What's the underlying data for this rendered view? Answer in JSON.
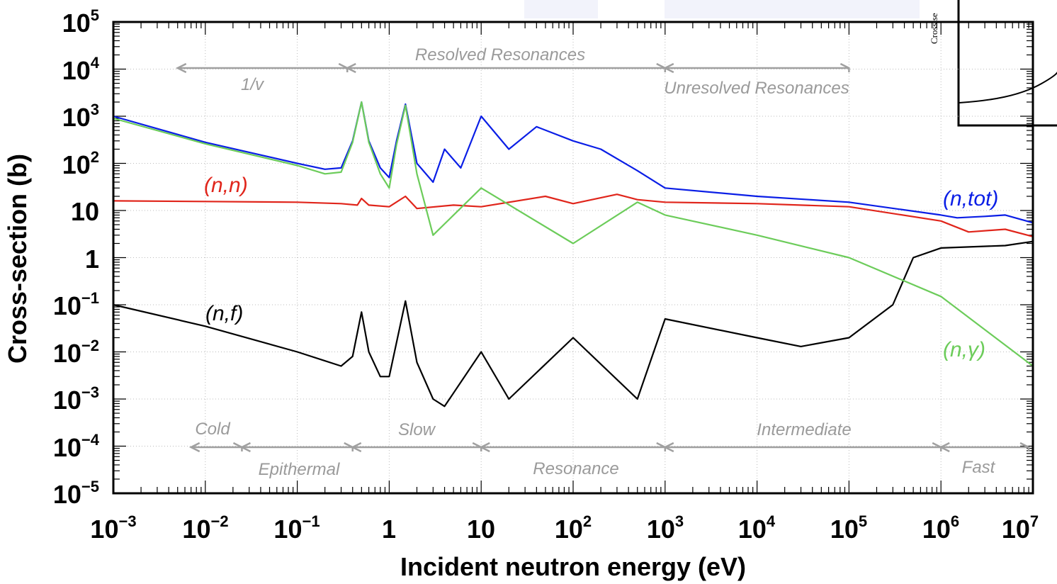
{
  "chart_data": {
    "type": "line",
    "xlabel": "Incident neutron energy (eV)",
    "ylabel": "Cross-section (b)",
    "x_scale": "log",
    "y_scale": "log",
    "xlim": [
      0.001,
      10000000
    ],
    "ylim": [
      1e-05,
      100000
    ],
    "grid": true,
    "x_ticks": [
      {
        "base": "10",
        "exp": "−3"
      },
      {
        "base": "10",
        "exp": "−2"
      },
      {
        "base": "10",
        "exp": "−1"
      },
      {
        "base": "1",
        "exp": ""
      },
      {
        "base": "10",
        "exp": ""
      },
      {
        "base": "10",
        "exp": "2"
      },
      {
        "base": "10",
        "exp": "3"
      },
      {
        "base": "10",
        "exp": "4"
      },
      {
        "base": "10",
        "exp": "5"
      },
      {
        "base": "10",
        "exp": "6"
      },
      {
        "base": "10",
        "exp": "7"
      }
    ],
    "y_ticks": [
      {
        "base": "10",
        "exp": "5"
      },
      {
        "base": "10",
        "exp": "4"
      },
      {
        "base": "10",
        "exp": "3"
      },
      {
        "base": "10",
        "exp": "2"
      },
      {
        "base": "10",
        "exp": ""
      },
      {
        "base": "1",
        "exp": ""
      },
      {
        "base": "10",
        "exp": "−1"
      },
      {
        "base": "10",
        "exp": "−2"
      },
      {
        "base": "10",
        "exp": "−3"
      },
      {
        "base": "10",
        "exp": "−4"
      },
      {
        "base": "10",
        "exp": "−5"
      }
    ],
    "series": [
      {
        "name": "(n,tot)",
        "color": "#0a1ee6",
        "x": [
          0.001,
          0.01,
          0.1,
          0.2,
          0.3,
          0.4,
          0.5,
          0.6,
          0.8,
          1.0,
          1.2,
          1.5,
          2.0,
          3.0,
          4.0,
          6.0,
          10,
          20,
          40,
          100,
          200,
          500,
          1000,
          10000,
          100000,
          1000000,
          1500000,
          3000000,
          5000000,
          10000000
        ],
        "y": [
          1000,
          280,
          100,
          75,
          80,
          300,
          2000,
          300,
          80,
          50,
          300,
          1800,
          100,
          40,
          200,
          80,
          1000,
          200,
          600,
          300,
          200,
          70,
          30,
          20,
          15,
          8,
          7,
          7.5,
          8,
          5.5
        ]
      },
      {
        "name": "(n,n)",
        "color": "#e0251b",
        "x": [
          0.001,
          0.01,
          0.1,
          0.3,
          0.45,
          0.5,
          0.6,
          1.0,
          1.5,
          2.0,
          5,
          10,
          50,
          100,
          300,
          500,
          1000,
          10000,
          100000,
          1000000,
          2000000,
          5000000,
          10000000
        ],
        "y": [
          16,
          15.5,
          15,
          14,
          13,
          18,
          13,
          12,
          20,
          11,
          13,
          12,
          20,
          14,
          22,
          17,
          15,
          14,
          12,
          6,
          3.5,
          4,
          2.8
        ]
      },
      {
        "name": "(n,γ)",
        "color": "#6ccc5a",
        "x": [
          0.001,
          0.01,
          0.1,
          0.2,
          0.3,
          0.4,
          0.5,
          0.6,
          0.8,
          1.0,
          1.2,
          1.5,
          2.0,
          3.0,
          10,
          100,
          500,
          1000,
          10000,
          100000,
          1000000,
          10000000
        ],
        "y": [
          900,
          260,
          90,
          60,
          65,
          280,
          2000,
          280,
          60,
          30,
          250,
          1700,
          60,
          3,
          30,
          2,
          15,
          8,
          3,
          1,
          0.15,
          0.005
        ]
      },
      {
        "name": "(n,f)",
        "color": "#000000",
        "x": [
          0.001,
          0.01,
          0.1,
          0.3,
          0.4,
          0.5,
          0.6,
          0.8,
          1.0,
          1.5,
          2.0,
          3.0,
          4.0,
          10,
          20,
          100,
          500,
          1000,
          10000,
          30000,
          100000,
          300000,
          500000,
          1000000,
          5000000,
          10000000
        ],
        "y": [
          0.1,
          0.035,
          0.01,
          0.005,
          0.008,
          0.07,
          0.01,
          0.003,
          0.003,
          0.12,
          0.006,
          0.001,
          0.0007,
          0.01,
          0.001,
          0.02,
          0.001,
          0.05,
          0.02,
          0.013,
          0.02,
          0.1,
          1.0,
          1.6,
          1.8,
          2.2
        ]
      }
    ],
    "series_labels": [
      {
        "text": "(n,tot)",
        "color": "#0a1ee6"
      },
      {
        "text": "(n,n)",
        "color": "#e0251b"
      },
      {
        "text": "(n,γ)",
        "color": "#6ccc5a"
      },
      {
        "text": "(n,f)",
        "color": "#000000"
      }
    ],
    "annotations": {
      "top": [
        "Resolved Resonances",
        "1/v",
        "Unresolved Resonances"
      ],
      "bottom": [
        "Cold",
        "Slow",
        "Intermediate",
        "Epithermal",
        "Resonance",
        "Fast"
      ]
    },
    "inset": {
      "axis_label": "Cross se"
    }
  },
  "colors": {
    "annotation_gray": "#9a9a9a",
    "arrow_gray": "#a0a0a0"
  }
}
